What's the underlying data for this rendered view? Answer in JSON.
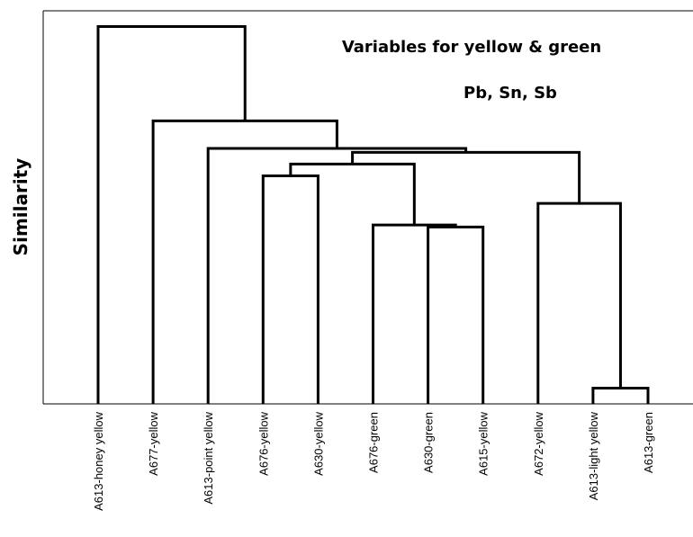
{
  "chart_data": {
    "type": "dendrogram",
    "title": "Variables for yellow & green",
    "subtitle": "Pb, Sn, Sb",
    "y_label": "Similarity",
    "leaves": [
      "A613-honey yellow",
      "A677-yellow",
      "A613-point yellow",
      "A676-yellow",
      "A630-yellow",
      "A676-green",
      "A630-green",
      "A615-yellow",
      "A672-yellow",
      "A613-light yellow",
      "A613-green"
    ],
    "merges": [
      {
        "left": 9,
        "right": 10,
        "height": 4
      },
      {
        "left": 6,
        "right": 7,
        "height": 45
      },
      {
        "left": 5,
        "right": 12,
        "height": 45.5
      },
      {
        "left": 8,
        "right": 11,
        "height": 51
      },
      {
        "left": 3,
        "right": 4,
        "height": 58
      },
      {
        "left": 15,
        "right": 13,
        "height": 61
      },
      {
        "left": 16,
        "right": 14,
        "height": 64
      },
      {
        "left": 2,
        "right": 17,
        "height": 65
      },
      {
        "left": 1,
        "right": 18,
        "height": 72
      },
      {
        "left": 0,
        "right": 19,
        "height": 96
      }
    ],
    "ylim": [
      0,
      100
    ],
    "color": "#000000"
  }
}
